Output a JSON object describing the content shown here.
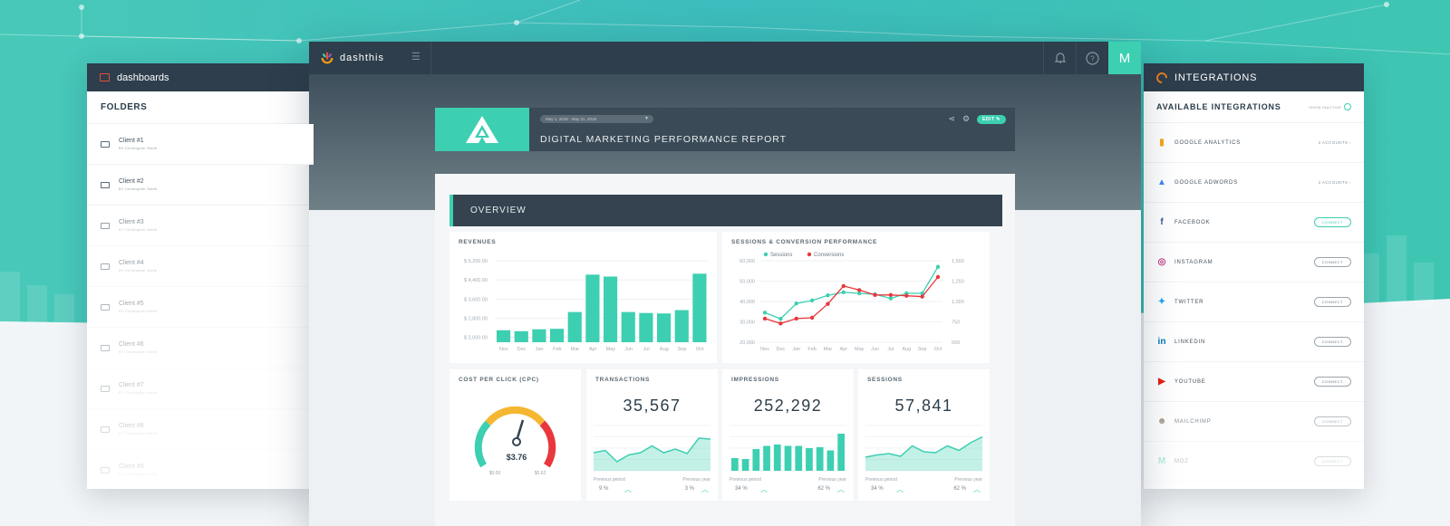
{
  "left_panel": {
    "title": "dashboards",
    "folders_title": "FOLDERS",
    "clients": [
      {
        "name": "Client #1",
        "by": "BY Christopher Smith"
      },
      {
        "name": "Client #2",
        "by": "BY Christopher Smith"
      },
      {
        "name": "Client #3",
        "by": "BY Christopher Smith"
      },
      {
        "name": "Client #4",
        "by": "BY Christopher Smith"
      },
      {
        "name": "Client #5",
        "by": "BY Christopher Smith"
      },
      {
        "name": "Client #6",
        "by": "BY Christopher Smith"
      },
      {
        "name": "Client #7",
        "by": "BY Christopher Smith"
      },
      {
        "name": "Client #8",
        "by": "BY Christopher Smith"
      },
      {
        "name": "Client #9",
        "by": "BY Christopher Smith"
      }
    ]
  },
  "topbar": {
    "logo_text": "dashthis",
    "avatar_letter": "M"
  },
  "report": {
    "date_range": "May 1, 2018 - May 31, 2018",
    "title": "DIGITAL MARKETING PERFORMANCE REPORT",
    "edit_label": "EDIT",
    "overview_label": "OVERVIEW"
  },
  "revenues": {
    "title": "REVENUES",
    "chart_data": {
      "type": "bar",
      "categories": [
        "Nov",
        "Dec",
        "Jan",
        "Feb",
        "Mar",
        "Apr",
        "May",
        "Jun",
        "Jul",
        "Aug",
        "Sep",
        "Oct"
      ],
      "values": [
        2300,
        2260,
        2340,
        2360,
        3060,
        4620,
        4540,
        3060,
        3020,
        3000,
        3140,
        4660
      ],
      "y_ticks": [
        "$ 2,000.00",
        "$ 2,800.00",
        "$ 3,600.00",
        "$ 4,400.00",
        "$ 5,200.00"
      ],
      "ylim": [
        1800,
        5200
      ],
      "color": "#3dcfb1"
    }
  },
  "sessions_conv": {
    "title": "SESSIONS & CONVERSION PERFORMANCE",
    "chart_data": {
      "type": "line",
      "categories": [
        "Nov",
        "Dec",
        "Jan",
        "Feb",
        "Mar",
        "Apr",
        "May",
        "Jun",
        "Jul",
        "Aug",
        "Sep",
        "Oct"
      ],
      "y_ticks_left": [
        "20,000",
        "30,000",
        "40,000",
        "50,000",
        "60,000"
      ],
      "ylim_left": [
        20000,
        60000
      ],
      "y_ticks_right": [
        "500",
        "750",
        "1,000",
        "1,250",
        "1,500"
      ],
      "ylim_right": [
        500,
        1500
      ],
      "series": [
        {
          "name": "Sessions",
          "axis": "left",
          "color": "#3dcfb1",
          "values": [
            34500,
            31500,
            39000,
            40500,
            43000,
            44500,
            44000,
            43500,
            41500,
            44000,
            44000,
            57000
          ]
        },
        {
          "name": "Conversions",
          "axis": "right",
          "color": "#e8383d",
          "values": [
            790,
            730,
            790,
            800,
            970,
            1190,
            1140,
            1080,
            1080,
            1070,
            1060,
            1300
          ]
        }
      ]
    }
  },
  "cpc": {
    "title": "COST PER CLICK (CPC)",
    "value": "$3.76",
    "min": "$0.00",
    "max": "$0.62"
  },
  "kpis": [
    {
      "title": "TRANSACTIONS",
      "value": "35,567",
      "left_label": "Previous period",
      "right_label": "Previous year",
      "left_pct": "9 %",
      "right_pct": "3 %",
      "chart_data": {
        "type": "area",
        "values": [
          40,
          45,
          20,
          35,
          40,
          55,
          40,
          48,
          38,
          72,
          70
        ]
      }
    },
    {
      "title": "IMPRESSIONS",
      "value": "252,292",
      "left_label": "Previous period",
      "right_label": "Previous year",
      "left_pct": "34 %",
      "right_pct": "62 %",
      "chart_data": {
        "type": "bar",
        "values": [
          28,
          26,
          48,
          55,
          58,
          55,
          55,
          50,
          52,
          45,
          82
        ]
      }
    },
    {
      "title": "SESSIONS",
      "value": "57,841",
      "left_label": "Previous period",
      "right_label": "Previous year",
      "left_pct": "34 %",
      "right_pct": "62 %",
      "chart_data": {
        "type": "area",
        "values": [
          30,
          35,
          38,
          32,
          55,
          42,
          40,
          55,
          45,
          62,
          75
        ]
      }
    }
  ],
  "integrations": {
    "title": "INTEGRATIONS",
    "available_title": "AVAILABLE INTEGRATIONS",
    "show_inactive": "SHOW INACTIVE",
    "items": [
      {
        "name": "GOOGLE ANALYTICS",
        "status": "2 ACCOUNTS ›",
        "type": "accounts",
        "icon": "google-analytics-icon",
        "color": "#f5a623"
      },
      {
        "name": "GOOGLE ADWORDS",
        "status": "2 ACCOUNTS ›",
        "type": "accounts",
        "icon": "google-adwords-icon",
        "color": "#4285f4"
      },
      {
        "name": "FACEBOOK",
        "status": "CONNECT",
        "type": "active",
        "icon": "facebook-icon",
        "color": "#3b5998"
      },
      {
        "name": "INSTAGRAM",
        "status": "CONNECT",
        "type": "connect",
        "icon": "instagram-icon",
        "color": "#c13584"
      },
      {
        "name": "TWITTER",
        "status": "CONNECT",
        "type": "connect",
        "icon": "twitter-icon",
        "color": "#1da1f2"
      },
      {
        "name": "LINKEDIN",
        "status": "CONNECT",
        "type": "connect",
        "icon": "linkedin-icon",
        "color": "#0077b5"
      },
      {
        "name": "YOUTUBE",
        "status": "CONNECT",
        "type": "connect",
        "icon": "youtube-icon",
        "color": "#e62117"
      },
      {
        "name": "MAILCHIMP",
        "status": "CONNECT",
        "type": "connect",
        "icon": "mailchimp-icon",
        "color": "#7a6a5a"
      },
      {
        "name": "MOZ",
        "status": "CONNECT",
        "type": "connect",
        "icon": "moz-icon",
        "color": "#3dcfb1"
      }
    ]
  }
}
